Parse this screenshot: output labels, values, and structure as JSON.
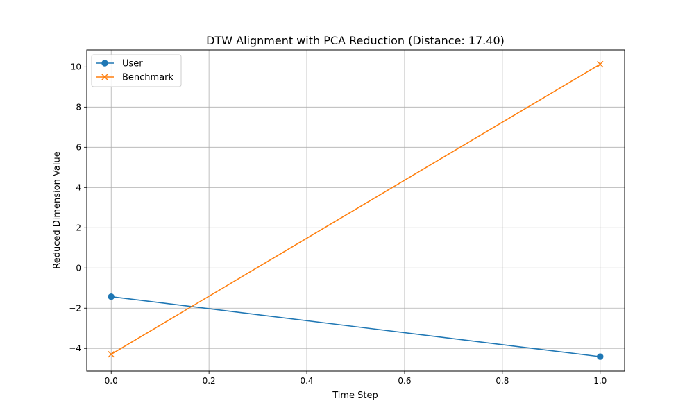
{
  "chart_data": {
    "type": "line",
    "title": "DTW Alignment with PCA Reduction (Distance: 17.40)",
    "xlabel": "Time Step",
    "ylabel": "Reduced Dimension Value",
    "xlim": [
      -0.05,
      1.05
    ],
    "ylim": [
      -5.13,
      10.84
    ],
    "xticks": [
      0.0,
      0.2,
      0.4,
      0.6,
      0.8,
      1.0
    ],
    "xtick_labels": [
      "0.0",
      "0.2",
      "0.4",
      "0.6",
      "0.8",
      "1.0"
    ],
    "yticks": [
      -4,
      -2,
      0,
      2,
      4,
      6,
      8,
      10
    ],
    "ytick_labels": [
      "−4",
      "−2",
      "0",
      "2",
      "4",
      "6",
      "8",
      "10"
    ],
    "grid": true,
    "legend_position": "upper-left",
    "series": [
      {
        "name": "User",
        "marker": "circle",
        "color": "#1f77b4",
        "x": [
          0,
          1
        ],
        "y": [
          -1.43,
          -4.41
        ]
      },
      {
        "name": "Benchmark",
        "marker": "x",
        "color": "#ff7f0e",
        "x": [
          0,
          1
        ],
        "y": [
          -4.29,
          10.13
        ]
      }
    ]
  }
}
